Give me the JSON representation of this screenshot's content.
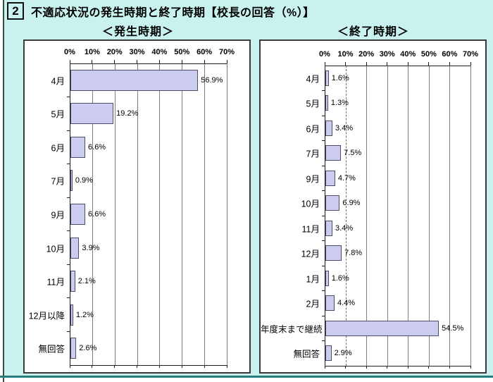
{
  "page": {
    "section_number": "2",
    "title": "不適応状況の発生時期と終了時期【校長の回答（%）】",
    "bg_color": "#c9f2ef",
    "bottom_rule_color": "#2e8b8b",
    "bar_color": "#ccccf0"
  },
  "chart_data": [
    {
      "type": "bar",
      "orientation": "horizontal",
      "subtitle": "＜発生時期＞",
      "categories": [
        "4月",
        "5月",
        "6月",
        "7月",
        "9月",
        "10月",
        "11月",
        "12月以降",
        "無回答"
      ],
      "values": [
        56.9,
        19.2,
        6.6,
        0.9,
        6.6,
        3.9,
        2.1,
        1.2,
        2.6
      ],
      "value_labels": [
        "56.9%",
        "19.2%",
        "6.6%",
        "0.9%",
        "6.6%",
        "3.9%",
        "2.1%",
        "1.2%",
        "2.6%"
      ],
      "xlim": [
        0,
        70
      ],
      "tick_labels": [
        "0%",
        "10%",
        "20%",
        "30%",
        "40%",
        "50%",
        "60%",
        "70%"
      ],
      "grid": true,
      "dashed_grid_at": null,
      "bar_color": "#ccccf0"
    },
    {
      "type": "bar",
      "orientation": "horizontal",
      "subtitle": "＜終了時期＞",
      "categories": [
        "4月",
        "5月",
        "6月",
        "7月",
        "9月",
        "10月",
        "11月",
        "12月",
        "1月",
        "2月",
        "年度末まで継続",
        "無回答"
      ],
      "values": [
        1.6,
        1.3,
        3.4,
        7.5,
        4.7,
        6.9,
        3.4,
        7.8,
        1.6,
        4.4,
        54.5,
        2.9
      ],
      "value_labels": [
        "1.6%",
        "1.3%",
        "3.4%",
        "7.5%",
        "4.7%",
        "6.9%",
        "3.4%",
        "7.8%",
        "1.6%",
        "4.4%",
        "54.5%",
        "2.9%"
      ],
      "xlim": [
        0,
        70
      ],
      "tick_labels": [
        "0%",
        "10%",
        "20%",
        "30%",
        "40%",
        "50%",
        "60%",
        "70%"
      ],
      "grid": true,
      "dashed_grid_at": 10,
      "bar_color": "#ccccf0"
    }
  ]
}
